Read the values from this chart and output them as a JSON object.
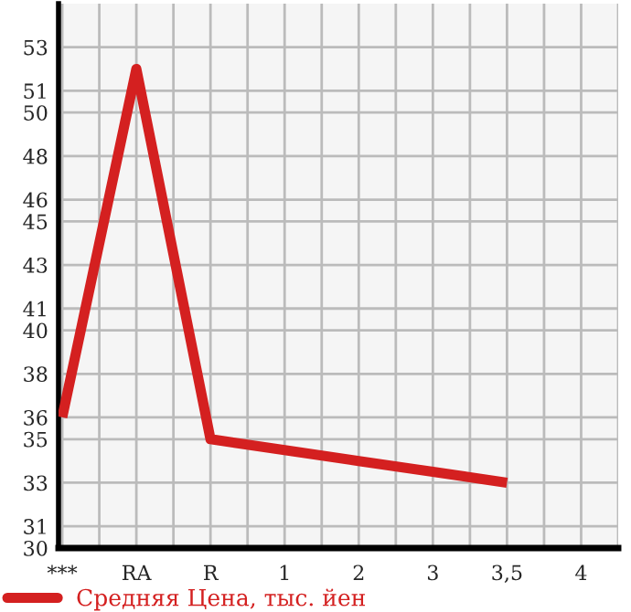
{
  "chart_data": {
    "type": "line",
    "categories": [
      "***",
      "RA",
      "R",
      "1",
      "2",
      "3",
      "3,5",
      "4"
    ],
    "series": [
      {
        "name": "Средняя Цена, тыс. йен",
        "color": "#d42020",
        "values": [
          36.0,
          52.0,
          35.0,
          34.5,
          34.0,
          33.5,
          33.0,
          null
        ]
      }
    ],
    "ylim": [
      30,
      55
    ],
    "yticks": [
      30,
      31,
      33,
      35,
      36,
      38,
      40,
      41,
      43,
      45,
      46,
      48,
      50,
      51,
      53
    ],
    "grid": true,
    "legend": "bottom",
    "marker": "none",
    "line_style": "solid"
  }
}
